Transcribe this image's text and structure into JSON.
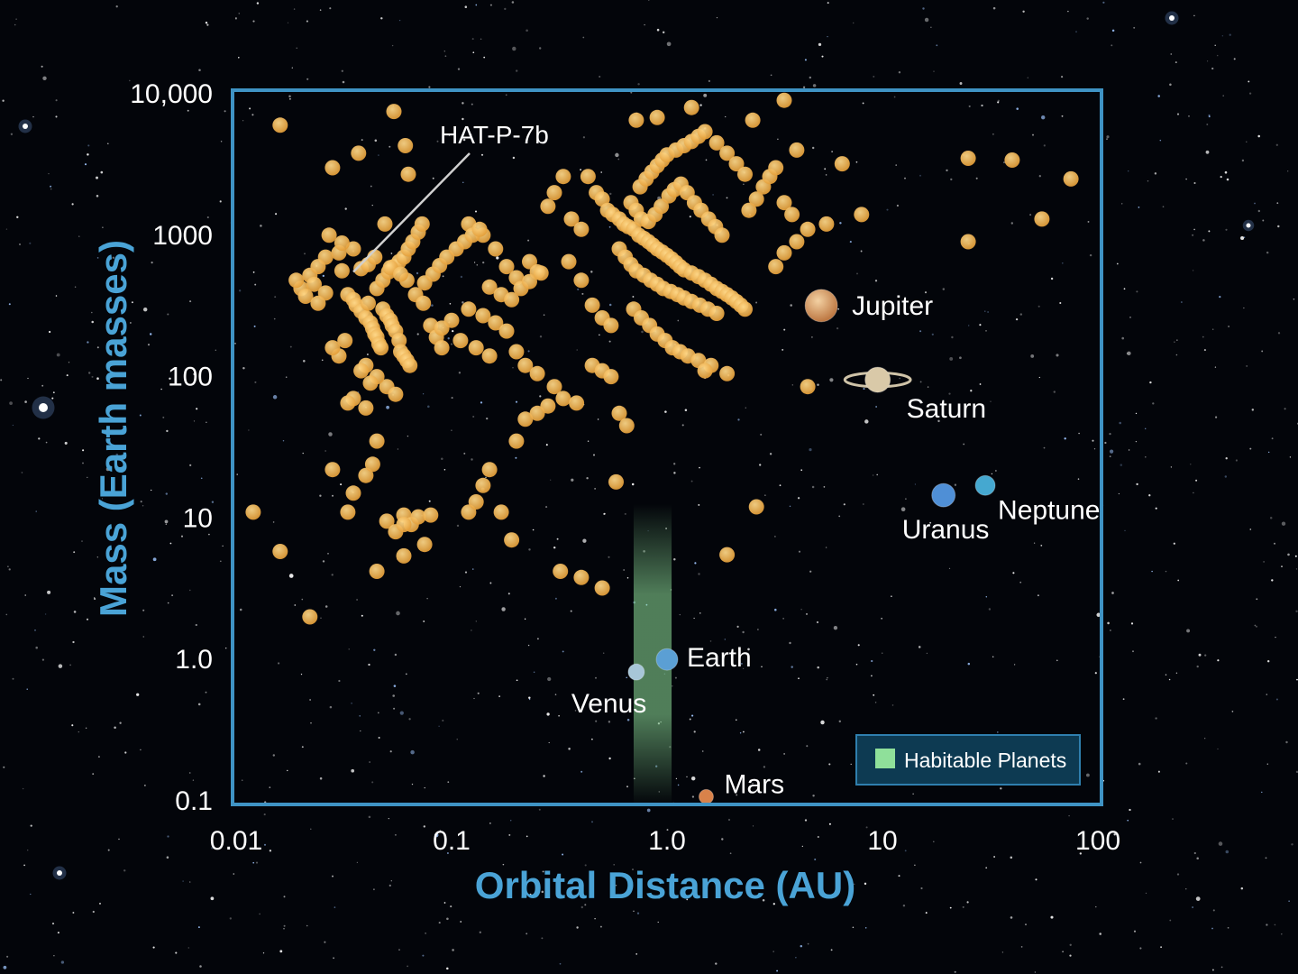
{
  "chart_data": {
    "type": "scatter",
    "xlabel": "Orbital Distance (AU)",
    "ylabel": "Mass (Earth masses)",
    "x_scale": "log",
    "y_scale": "log",
    "xlim": [
      0.01,
      100
    ],
    "ylim": [
      0.1,
      10000
    ],
    "x_ticks": [
      {
        "value": 0.01,
        "label": "0.01"
      },
      {
        "value": 0.1,
        "label": "0.1"
      },
      {
        "value": 1.0,
        "label": "1.0"
      },
      {
        "value": 10,
        "label": "10"
      },
      {
        "value": 100,
        "label": "100"
      }
    ],
    "y_ticks": [
      {
        "value": 0.1,
        "label": "0.1"
      },
      {
        "value": 1.0,
        "label": "1.0"
      },
      {
        "value": 10,
        "label": "10"
      },
      {
        "value": 100,
        "label": "100"
      },
      {
        "value": 1000,
        "label": "1000"
      },
      {
        "value": 10000,
        "label": "10,000"
      }
    ],
    "grid": false,
    "legend": {
      "position": "bottom-right",
      "entries": [
        {
          "label": "Habitable Planets",
          "color": "#8fe09a"
        }
      ]
    },
    "habitable_zone": {
      "x_range": [
        0.7,
        1.05
      ],
      "label": "Habitable Planets"
    },
    "annotation": {
      "label": "HAT-P-7b",
      "x": 0.035,
      "y": 550
    },
    "colors": {
      "exoplanet": "#f2b24a",
      "frame": "#3f93c4",
      "axis_title": "#4aa3d6",
      "habitable": "#8fe09a",
      "legend_bg": "#0d3a52"
    },
    "solar_system": [
      {
        "name": "Venus",
        "x": 0.72,
        "y": 0.815,
        "color": "#a7c6d8"
      },
      {
        "name": "Earth",
        "x": 1.0,
        "y": 1.0,
        "color": "#5b9fd4"
      },
      {
        "name": "Mars",
        "x": 1.52,
        "y": 0.107,
        "color": "#d9824a"
      },
      {
        "name": "Jupiter",
        "x": 5.2,
        "y": 318,
        "color": "#d8a06a"
      },
      {
        "name": "Saturn",
        "x": 9.5,
        "y": 95,
        "color": "#d9c9a8"
      },
      {
        "name": "Uranus",
        "x": 19.2,
        "y": 14.5,
        "color": "#4f8fd6"
      },
      {
        "name": "Neptune",
        "x": 30,
        "y": 17,
        "color": "#45a8d0"
      }
    ],
    "series": [
      {
        "points": [
          [
            0.016,
            6000
          ],
          [
            0.022,
            520
          ],
          [
            0.023,
            450
          ],
          [
            0.026,
            390
          ],
          [
            0.027,
            1000
          ],
          [
            0.028,
            3000
          ],
          [
            0.03,
            750
          ],
          [
            0.031,
            560
          ],
          [
            0.033,
            380
          ],
          [
            0.035,
            350
          ],
          [
            0.036,
            320
          ],
          [
            0.037,
            3800
          ],
          [
            0.038,
            290
          ],
          [
            0.04,
            260
          ],
          [
            0.041,
            330
          ],
          [
            0.042,
            240
          ],
          [
            0.043,
            220
          ],
          [
            0.044,
            200
          ],
          [
            0.045,
            190
          ],
          [
            0.046,
            170
          ],
          [
            0.047,
            160
          ],
          [
            0.048,
            300
          ],
          [
            0.05,
            270
          ],
          [
            0.052,
            250
          ],
          [
            0.053,
            230
          ],
          [
            0.055,
            210
          ],
          [
            0.057,
            180
          ],
          [
            0.058,
            150
          ],
          [
            0.06,
            140
          ],
          [
            0.062,
            130
          ],
          [
            0.064,
            120
          ],
          [
            0.045,
            420
          ],
          [
            0.048,
            480
          ],
          [
            0.051,
            550
          ],
          [
            0.054,
            600
          ],
          [
            0.057,
            650
          ],
          [
            0.06,
            700
          ],
          [
            0.063,
            800
          ],
          [
            0.066,
            900
          ],
          [
            0.07,
            1050
          ],
          [
            0.073,
            1200
          ],
          [
            0.049,
            1200
          ],
          [
            0.054,
            7500
          ],
          [
            0.061,
            4300
          ],
          [
            0.063,
            2700
          ],
          [
            0.062,
            480
          ],
          [
            0.068,
            380
          ],
          [
            0.074,
            330
          ],
          [
            0.08,
            230
          ],
          [
            0.085,
            190
          ],
          [
            0.09,
            160
          ],
          [
            0.12,
            1200
          ],
          [
            0.14,
            1000
          ],
          [
            0.16,
            800
          ],
          [
            0.18,
            600
          ],
          [
            0.2,
            500
          ],
          [
            0.23,
            650
          ],
          [
            0.25,
            550
          ],
          [
            0.28,
            1600
          ],
          [
            0.3,
            2000
          ],
          [
            0.33,
            2600
          ],
          [
            0.36,
            1300
          ],
          [
            0.4,
            1100
          ],
          [
            0.43,
            2600
          ],
          [
            0.47,
            2000
          ],
          [
            0.5,
            1800
          ],
          [
            0.53,
            1500
          ],
          [
            0.56,
            1400
          ],
          [
            0.6,
            1300
          ],
          [
            0.63,
            1200
          ],
          [
            0.66,
            1150
          ],
          [
            0.7,
            1100
          ],
          [
            0.74,
            1000
          ],
          [
            0.78,
            950
          ],
          [
            0.82,
            900
          ],
          [
            0.86,
            850
          ],
          [
            0.9,
            800
          ],
          [
            0.95,
            760
          ],
          [
            1.0,
            720
          ],
          [
            1.05,
            680
          ],
          [
            1.1,
            640
          ],
          [
            1.15,
            600
          ],
          [
            1.2,
            570
          ],
          [
            1.3,
            540
          ],
          [
            1.4,
            510
          ],
          [
            1.5,
            480
          ],
          [
            1.6,
            450
          ],
          [
            1.7,
            420
          ],
          [
            1.8,
            400
          ],
          [
            1.9,
            380
          ],
          [
            2.0,
            360
          ],
          [
            2.1,
            340
          ],
          [
            2.2,
            320
          ],
          [
            2.3,
            300
          ],
          [
            2.4,
            1500
          ],
          [
            2.6,
            1800
          ],
          [
            2.8,
            2200
          ],
          [
            3.0,
            2600
          ],
          [
            3.2,
            3000
          ],
          [
            3.5,
            1700
          ],
          [
            3.8,
            1400
          ],
          [
            0.75,
            2200
          ],
          [
            0.8,
            2500
          ],
          [
            0.85,
            2800
          ],
          [
            0.9,
            3100
          ],
          [
            0.95,
            3400
          ],
          [
            1.0,
            3700
          ],
          [
            1.1,
            4000
          ],
          [
            1.2,
            4300
          ],
          [
            1.3,
            4600
          ],
          [
            1.4,
            5000
          ],
          [
            1.5,
            5400
          ],
          [
            1.7,
            4500
          ],
          [
            1.9,
            3800
          ],
          [
            2.1,
            3200
          ],
          [
            2.3,
            2700
          ],
          [
            0.68,
            1700
          ],
          [
            0.72,
            1500
          ],
          [
            0.76,
            1300
          ],
          [
            0.82,
            1250
          ],
          [
            0.88,
            1400
          ],
          [
            0.94,
            1600
          ],
          [
            1.02,
            1900
          ],
          [
            1.08,
            2100
          ],
          [
            1.16,
            2300
          ],
          [
            1.24,
            2000
          ],
          [
            1.34,
            1700
          ],
          [
            1.44,
            1500
          ],
          [
            1.56,
            1300
          ],
          [
            1.68,
            1150
          ],
          [
            1.8,
            1000
          ],
          [
            0.6,
            800
          ],
          [
            0.64,
            700
          ],
          [
            0.68,
            620
          ],
          [
            0.72,
            560
          ],
          [
            0.78,
            520
          ],
          [
            0.84,
            480
          ],
          [
            0.9,
            450
          ],
          [
            0.96,
            420
          ],
          [
            1.04,
            400
          ],
          [
            1.12,
            380
          ],
          [
            1.2,
            360
          ],
          [
            1.3,
            340
          ],
          [
            1.42,
            320
          ],
          [
            1.55,
            300
          ],
          [
            1.7,
            280
          ],
          [
            0.7,
            300
          ],
          [
            0.76,
            260
          ],
          [
            0.83,
            230
          ],
          [
            0.9,
            200
          ],
          [
            0.98,
            180
          ],
          [
            1.06,
            160
          ],
          [
            1.15,
            150
          ],
          [
            1.25,
            140
          ],
          [
            1.4,
            130
          ],
          [
            1.6,
            120
          ],
          [
            0.72,
            6500
          ],
          [
            0.9,
            6800
          ],
          [
            1.3,
            8000
          ],
          [
            2.5,
            6500
          ],
          [
            3.5,
            9000
          ],
          [
            4.0,
            4000
          ],
          [
            6.5,
            3200
          ],
          [
            8.0,
            1400
          ],
          [
            25,
            3500
          ],
          [
            40,
            3400
          ],
          [
            55,
            1300
          ],
          [
            75,
            2500
          ],
          [
            25,
            900
          ],
          [
            1.5,
            110
          ],
          [
            1.9,
            105
          ],
          [
            4.5,
            85
          ],
          [
            3.2,
            600
          ],
          [
            3.5,
            750
          ],
          [
            4.0,
            900
          ],
          [
            4.5,
            1100
          ],
          [
            5.5,
            1200
          ],
          [
            0.35,
            650
          ],
          [
            0.4,
            480
          ],
          [
            0.45,
            320
          ],
          [
            0.5,
            260
          ],
          [
            0.55,
            230
          ],
          [
            0.12,
            300
          ],
          [
            0.14,
            270
          ],
          [
            0.16,
            240
          ],
          [
            0.18,
            210
          ],
          [
            0.2,
            150
          ],
          [
            0.22,
            120
          ],
          [
            0.1,
            250
          ],
          [
            0.09,
            220
          ],
          [
            0.11,
            180
          ],
          [
            0.13,
            160
          ],
          [
            0.15,
            140
          ],
          [
            0.25,
            105
          ],
          [
            0.3,
            85
          ],
          [
            0.33,
            70
          ],
          [
            0.38,
            65
          ],
          [
            0.45,
            120
          ],
          [
            0.5,
            110
          ],
          [
            0.55,
            100
          ],
          [
            0.028,
            22
          ],
          [
            0.035,
            15
          ],
          [
            0.033,
            11
          ],
          [
            0.04,
            20
          ],
          [
            0.043,
            24
          ],
          [
            0.05,
            9.5
          ],
          [
            0.055,
            8
          ],
          [
            0.06,
            10.5
          ],
          [
            0.065,
            9
          ],
          [
            0.07,
            10.2
          ],
          [
            0.075,
            6.5
          ],
          [
            0.08,
            10.5
          ],
          [
            0.12,
            11
          ],
          [
            0.13,
            13
          ],
          [
            0.14,
            17
          ],
          [
            0.15,
            22
          ],
          [
            0.17,
            11
          ],
          [
            0.19,
            7
          ],
          [
            0.2,
            35
          ],
          [
            0.22,
            50
          ],
          [
            0.25,
            55
          ],
          [
            0.28,
            62
          ],
          [
            0.012,
            11
          ],
          [
            0.016,
            5.8
          ],
          [
            0.022,
            2
          ],
          [
            0.045,
            4.2
          ],
          [
            0.06,
            5.4
          ],
          [
            0.06,
            9
          ],
          [
            0.32,
            4.2
          ],
          [
            0.4,
            3.8
          ],
          [
            0.5,
            3.2
          ],
          [
            0.58,
            18
          ],
          [
            0.6,
            55
          ],
          [
            0.65,
            45
          ],
          [
            1.9,
            5.5
          ],
          [
            2.6,
            12
          ],
          [
            0.045,
            35
          ],
          [
            0.04,
            60
          ],
          [
            0.035,
            70
          ],
          [
            0.033,
            65
          ],
          [
            0.05,
            85
          ],
          [
            0.04,
            120
          ],
          [
            0.045,
            100
          ],
          [
            0.03,
            140
          ],
          [
            0.028,
            160
          ],
          [
            0.032,
            180
          ],
          [
            0.038,
            110
          ],
          [
            0.042,
            90
          ],
          [
            0.055,
            75
          ],
          [
            0.038,
            580
          ],
          [
            0.041,
            620
          ],
          [
            0.044,
            700
          ],
          [
            0.052,
            590
          ],
          [
            0.058,
            530
          ],
          [
            0.035,
            800
          ],
          [
            0.031,
            880
          ],
          [
            0.026,
            700
          ],
          [
            0.024,
            600
          ],
          [
            0.02,
            420
          ],
          [
            0.019,
            480
          ],
          [
            0.021,
            370
          ],
          [
            0.024,
            330
          ],
          [
            0.15,
            430
          ],
          [
            0.17,
            380
          ],
          [
            0.19,
            350
          ],
          [
            0.21,
            420
          ],
          [
            0.23,
            470
          ],
          [
            0.26,
            540
          ],
          [
            0.075,
            460
          ],
          [
            0.082,
            530
          ],
          [
            0.088,
            610
          ],
          [
            0.095,
            700
          ],
          [
            0.105,
            800
          ],
          [
            0.115,
            900
          ],
          [
            0.125,
            1000
          ],
          [
            0.135,
            1100
          ]
        ]
      }
    ]
  }
}
